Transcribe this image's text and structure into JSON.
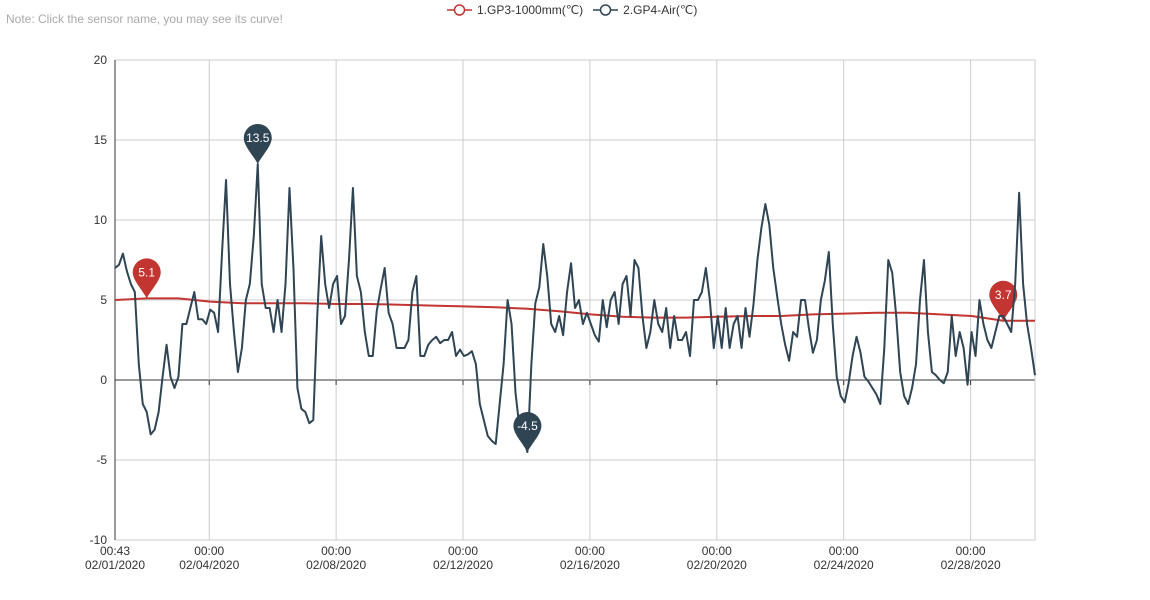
{
  "note": "Note: Click the sensor name, you may see its curve!",
  "chart_data": {
    "type": "line",
    "title": "",
    "xlabel": "",
    "ylabel": "",
    "ylim": [
      -10,
      20
    ],
    "yticks": [
      "20",
      "15",
      "10",
      "5",
      "0",
      "-5",
      "-10"
    ],
    "ytick_values": [
      20,
      15,
      10,
      5,
      0,
      -5,
      -10
    ],
    "x_start": "02/01/2020 00:43",
    "x_range_days": [
      0,
      29
    ],
    "xticks": [
      {
        "day": 0,
        "time": "00:43",
        "date": "02/01/2020"
      },
      {
        "day": 2.97,
        "time": "00:00",
        "date": "02/04/2020"
      },
      {
        "day": 6.97,
        "time": "00:00",
        "date": "02/08/2020"
      },
      {
        "day": 10.97,
        "time": "00:00",
        "date": "02/12/2020"
      },
      {
        "day": 14.97,
        "time": "00:00",
        "date": "02/16/2020"
      },
      {
        "day": 18.97,
        "time": "00:00",
        "date": "02/20/2020"
      },
      {
        "day": 22.97,
        "time": "00:00",
        "date": "02/24/2020"
      },
      {
        "day": 26.97,
        "time": "00:00",
        "date": "02/28/2020"
      }
    ],
    "grid": true,
    "legend_position": "top-center",
    "series": [
      {
        "name": "1.GP3-1000mm(℃)",
        "color": "#c23531",
        "interval_hours": 24,
        "marks": {
          "max": "5.1",
          "min": "3.7"
        },
        "values": [
          5.0,
          5.1,
          5.1,
          4.9,
          4.8,
          4.8,
          4.8,
          4.75,
          4.75,
          4.7,
          4.65,
          4.6,
          4.55,
          4.45,
          4.3,
          4.1,
          3.95,
          3.9,
          3.9,
          3.95,
          4.0,
          4.0,
          4.1,
          4.15,
          4.2,
          4.2,
          4.1,
          4.0,
          3.7,
          3.7
        ]
      },
      {
        "name": "2.GP4-Air(℃)",
        "color": "#2f4554",
        "interval_hours": 3,
        "marks": {
          "max": "13.5",
          "min": "-4.5"
        },
        "values": [
          7,
          7.2,
          7.9,
          6.8,
          6,
          5.5,
          1,
          -1.5,
          -2,
          -3.4,
          -3.1,
          -2,
          0.2,
          2.2,
          0.2,
          -0.5,
          0.2,
          3.5,
          3.5,
          4.5,
          5.5,
          3.8,
          3.8,
          3.5,
          4.4,
          4.2,
          3,
          8,
          12.5,
          6,
          3,
          0.5,
          2,
          5,
          6,
          9,
          13.5,
          6,
          4.5,
          4.5,
          3,
          5,
          3,
          6,
          12,
          7,
          -0.5,
          -1.8,
          -2,
          -2.7,
          -2.5,
          4,
          9,
          6,
          4.5,
          6,
          6.5,
          3.5,
          4,
          7.5,
          12,
          6.5,
          5.5,
          3,
          1.5,
          1.5,
          4.3,
          5.7,
          7,
          4.2,
          3.5,
          2,
          2,
          2,
          2.5,
          5.5,
          6.5,
          1.5,
          1.5,
          2.2,
          2.5,
          2.7,
          2.3,
          2.5,
          2.5,
          3,
          1.5,
          1.9,
          1.5,
          1.6,
          1.8,
          1,
          -1.5,
          -2.5,
          -3.5,
          -3.8,
          -4,
          -1.5,
          1,
          5,
          3.5,
          -0.8,
          -3,
          -3.6,
          -4.5,
          1,
          4.8,
          5.8,
          8.5,
          6.5,
          3.5,
          3,
          4,
          2.8,
          5.5,
          7.3,
          4.5,
          5,
          3.5,
          4.2,
          3.5,
          2.8,
          2.4,
          5,
          3.3,
          5,
          5.5,
          3.5,
          6,
          6.5,
          4,
          7.5,
          7,
          4,
          2,
          3,
          5,
          3.5,
          3,
          4.5,
          2,
          4,
          2.5,
          2.5,
          3,
          1.5,
          5,
          5,
          5.5,
          7,
          5,
          2,
          4,
          2,
          4.5,
          2,
          3.5,
          4,
          2,
          4.5,
          2.7,
          4.7,
          7.5,
          9.5,
          11,
          9.7,
          7,
          5.2,
          3.5,
          2.2,
          1.2,
          3,
          2.7,
          5,
          5,
          3.2,
          1.7,
          2.5,
          5,
          6.2,
          8,
          3.5,
          0.2,
          -1,
          -1.4,
          -0.2,
          1.5,
          2.7,
          1.7,
          0.2,
          -0.1,
          -0.5,
          -0.9,
          -1.5,
          2,
          7.5,
          6.7,
          4,
          0.5,
          -1,
          -1.5,
          -0.5,
          1,
          5,
          7.5,
          3,
          0.5,
          0.3,
          0,
          -0.2,
          0.5,
          4,
          1.5,
          3,
          2,
          -0.3,
          3,
          1.5,
          5,
          3.5,
          2.5,
          2,
          3,
          4,
          4,
          3.5,
          3,
          6,
          11.7,
          6,
          3.5,
          2,
          0.3
        ]
      }
    ]
  }
}
